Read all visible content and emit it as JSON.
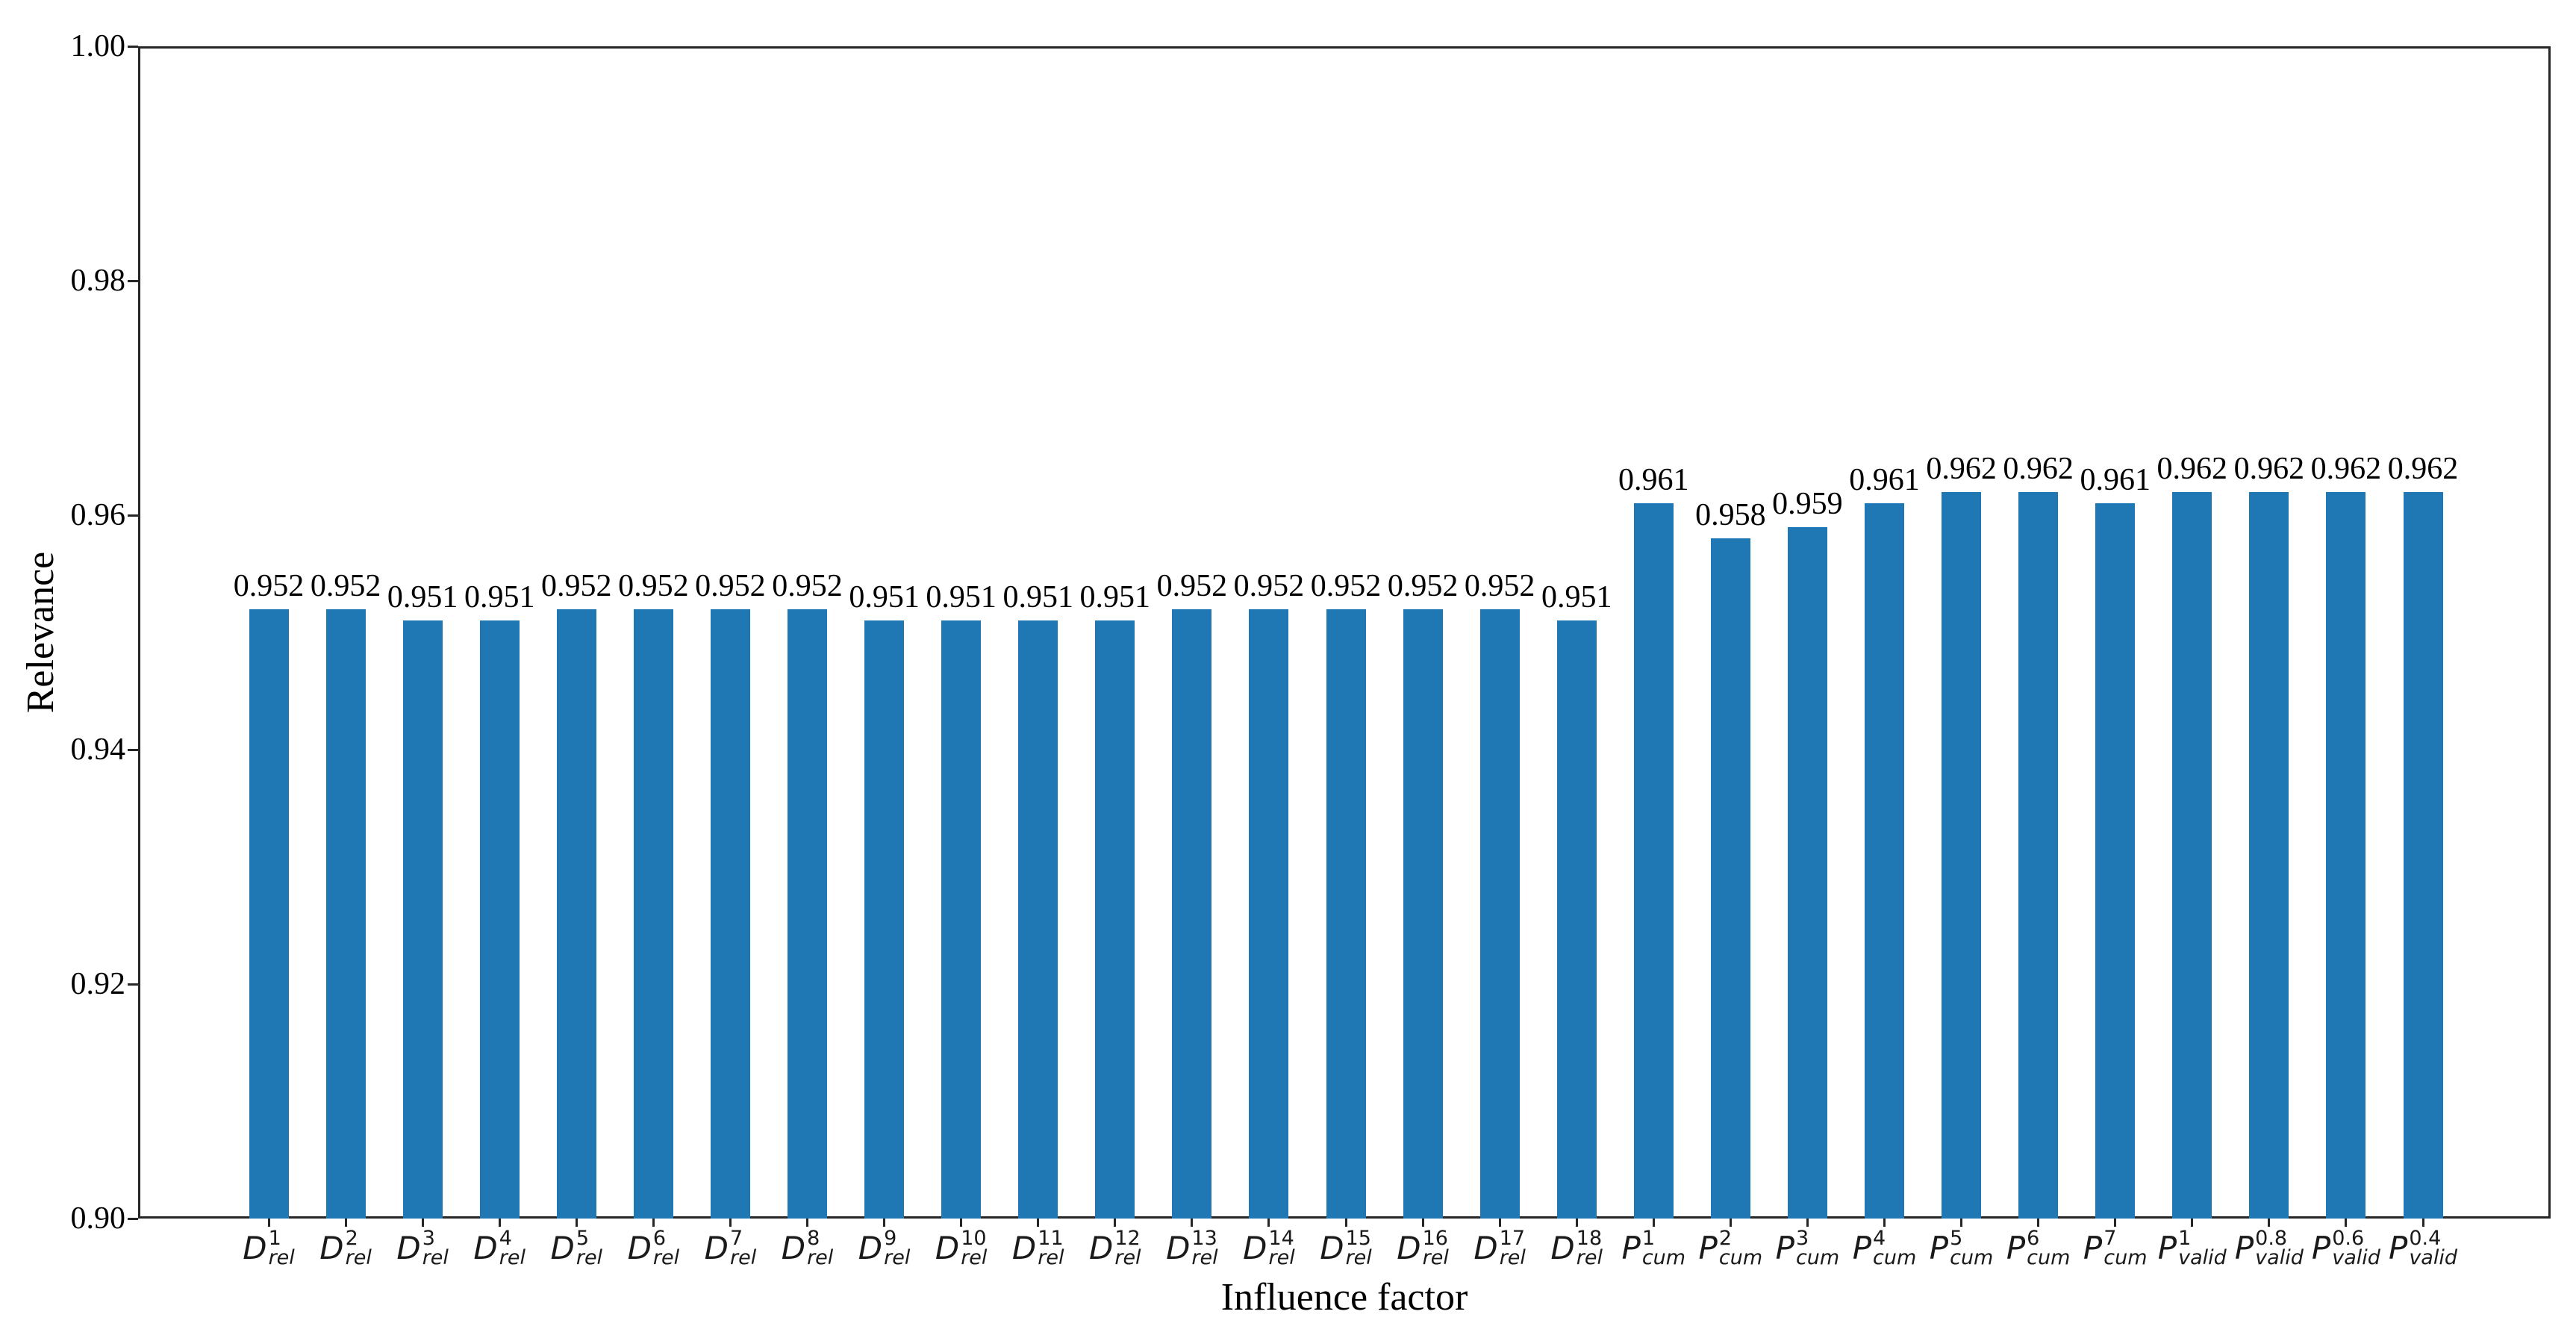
{
  "chart_data": {
    "type": "bar",
    "title": "",
    "xlabel": "Influence factor",
    "ylabel": "Relevance",
    "ylim": [
      0.9,
      1.0
    ],
    "yticks": [
      0.9,
      0.92,
      0.94,
      0.96,
      0.98,
      1.0
    ],
    "ytick_labels": [
      "0.90",
      "0.92",
      "0.94",
      "0.96",
      "0.98",
      "1.00"
    ],
    "grid": false,
    "legend": "none",
    "bar_color": "#1f77b4",
    "axis_color": "#262626",
    "categories": [
      {
        "base": "D",
        "sup": "1",
        "sub": "rel"
      },
      {
        "base": "D",
        "sup": "2",
        "sub": "rel"
      },
      {
        "base": "D",
        "sup": "3",
        "sub": "rel"
      },
      {
        "base": "D",
        "sup": "4",
        "sub": "rel"
      },
      {
        "base": "D",
        "sup": "5",
        "sub": "rel"
      },
      {
        "base": "D",
        "sup": "6",
        "sub": "rel"
      },
      {
        "base": "D",
        "sup": "7",
        "sub": "rel"
      },
      {
        "base": "D",
        "sup": "8",
        "sub": "rel"
      },
      {
        "base": "D",
        "sup": "9",
        "sub": "rel"
      },
      {
        "base": "D",
        "sup": "10",
        "sub": "rel"
      },
      {
        "base": "D",
        "sup": "11",
        "sub": "rel"
      },
      {
        "base": "D",
        "sup": "12",
        "sub": "rel"
      },
      {
        "base": "D",
        "sup": "13",
        "sub": "rel"
      },
      {
        "base": "D",
        "sup": "14",
        "sub": "rel"
      },
      {
        "base": "D",
        "sup": "15",
        "sub": "rel"
      },
      {
        "base": "D",
        "sup": "16",
        "sub": "rel"
      },
      {
        "base": "D",
        "sup": "17",
        "sub": "rel"
      },
      {
        "base": "D",
        "sup": "18",
        "sub": "rel"
      },
      {
        "base": "P",
        "sup": "1",
        "sub": "cum"
      },
      {
        "base": "P",
        "sup": "2",
        "sub": "cum"
      },
      {
        "base": "P",
        "sup": "3",
        "sub": "cum"
      },
      {
        "base": "P",
        "sup": "4",
        "sub": "cum"
      },
      {
        "base": "P",
        "sup": "5",
        "sub": "cum"
      },
      {
        "base": "P",
        "sup": "6",
        "sub": "cum"
      },
      {
        "base": "P",
        "sup": "7",
        "sub": "cum"
      },
      {
        "base": "P",
        "sup": "1",
        "sub": "valid"
      },
      {
        "base": "P",
        "sup": "0.8",
        "sub": "valid"
      },
      {
        "base": "P",
        "sup": "0.6",
        "sub": "valid"
      },
      {
        "base": "P",
        "sup": "0.4",
        "sub": "valid"
      }
    ],
    "values": [
      0.952,
      0.952,
      0.951,
      0.951,
      0.952,
      0.952,
      0.952,
      0.952,
      0.951,
      0.951,
      0.951,
      0.951,
      0.952,
      0.952,
      0.952,
      0.952,
      0.952,
      0.951,
      0.961,
      0.958,
      0.959,
      0.961,
      0.962,
      0.962,
      0.961,
      0.962,
      0.962,
      0.962,
      0.962
    ],
    "value_labels": [
      "0.952",
      "0.952",
      "0.951",
      "0.951",
      "0.952",
      "0.952",
      "0.952",
      "0.952",
      "0.951",
      "0.951",
      "0.951",
      "0.951",
      "0.952",
      "0.952",
      "0.952",
      "0.952",
      "0.952",
      "0.951",
      "0.961",
      "0.958",
      "0.959",
      "0.961",
      "0.962",
      "0.962",
      "0.961",
      "0.962",
      "0.962",
      "0.962",
      "0.962"
    ]
  }
}
